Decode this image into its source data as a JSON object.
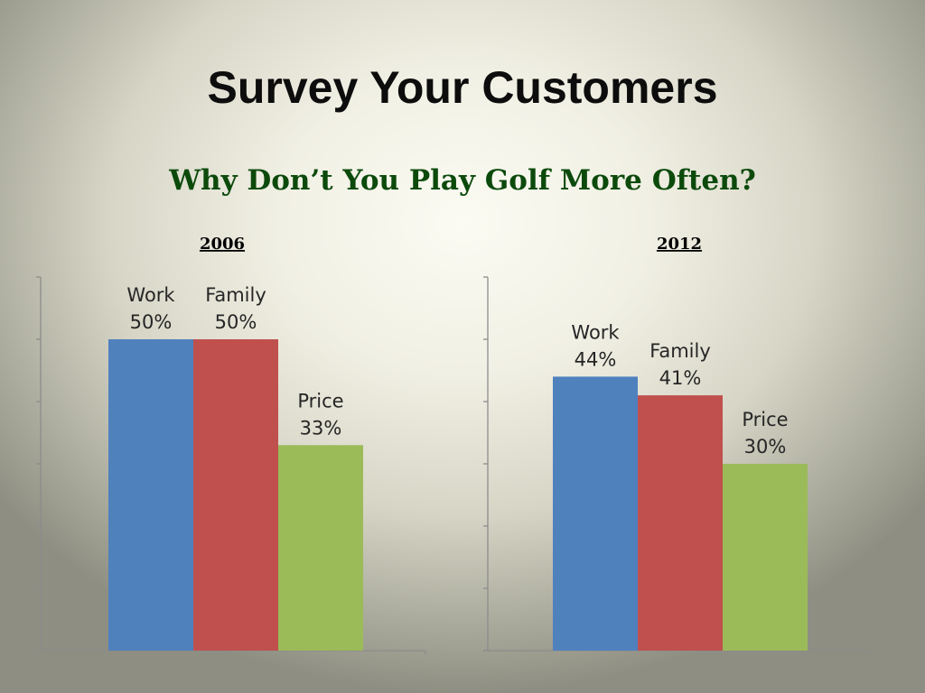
{
  "title": "Survey Your Customers",
  "subtitle": "Why Don’t You Play Golf More Often?",
  "colors": {
    "Work": "#4f81bd",
    "Family": "#c0504d",
    "Price": "#9bbb59",
    "title": "#0d0d0d",
    "subtitle": "#0c4a0c",
    "axis": "#8c8c8c"
  },
  "chart_data": [
    {
      "type": "bar",
      "title": "2006",
      "categories": [
        "Work",
        "Family",
        "Price"
      ],
      "values": [
        50,
        50,
        33
      ],
      "data_labels": [
        "50%",
        "50%",
        "33%"
      ],
      "ylim": [
        0,
        60
      ],
      "xlabel": "",
      "ylabel": "",
      "grid": false,
      "legend": "none"
    },
    {
      "type": "bar",
      "title": "2012",
      "categories": [
        "Work",
        "Family",
        "Price"
      ],
      "values": [
        44,
        41,
        30
      ],
      "data_labels": [
        "44%",
        "41%",
        "30%"
      ],
      "ylim": [
        0,
        60
      ],
      "xlabel": "",
      "ylabel": "",
      "grid": false,
      "legend": "none"
    }
  ]
}
